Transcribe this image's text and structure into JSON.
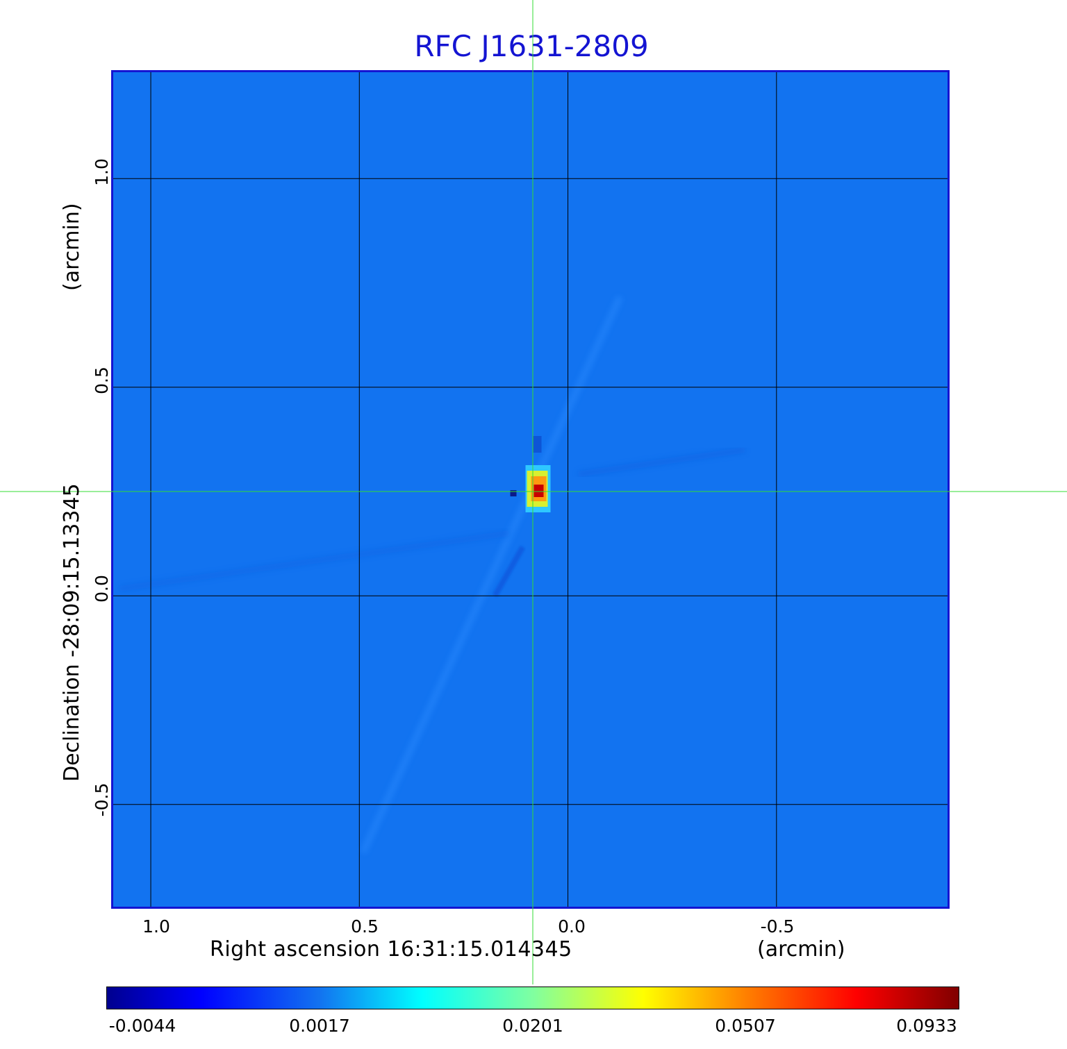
{
  "chart_data": {
    "type": "heatmap",
    "title": "RFC J1631-2809",
    "xlabel": "Right ascension  16:31:15.014345",
    "xunit": "(arcmin)",
    "ylabel": "Declination  -28:09:15.13345",
    "yunit": "(arcmin)",
    "x_ticks": [
      "1.0",
      "0.5",
      "0.0",
      "-0.5"
    ],
    "x_tick_values": [
      1.0,
      0.5,
      0.0,
      -0.5
    ],
    "y_ticks": [
      "1.0",
      "0.5",
      "0.0",
      "-0.5"
    ],
    "y_tick_values": [
      1.0,
      0.5,
      0.0,
      -0.5
    ],
    "xlim": [
      1.095,
      -0.915
    ],
    "ylim": [
      -0.75,
      1.26
    ],
    "grid": true,
    "crosshair": {
      "x": 0.083,
      "y": 0.25
    },
    "source_peak": {
      "x": 0.075,
      "y": 0.25,
      "value": 0.0933
    },
    "colorbar": {
      "colormap": "jet",
      "tick_labels": [
        "-0.0044",
        "0.0017",
        "0.0201",
        "0.0507",
        "0.0933"
      ],
      "min": -0.0044,
      "max": 0.0933
    },
    "background_color": "#1273f0",
    "grid_color": "#000000",
    "crosshair_color": "#33dd33",
    "frame_color": "#1414d2"
  }
}
